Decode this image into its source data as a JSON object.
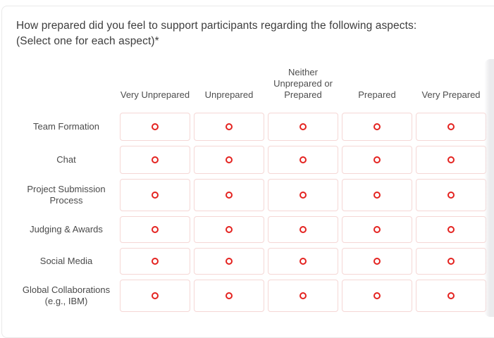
{
  "question": {
    "title_line1": "How prepared did you feel to support participants regarding the following aspects:",
    "title_line2": "(Select one for each aspect)*"
  },
  "matrix": {
    "columns": [
      "Very Unprepared",
      "Unprepared",
      "Neither Unprepared or Prepared",
      "Prepared",
      "Very Prepared"
    ],
    "rows": [
      {
        "label": "Team Formation"
      },
      {
        "label": "Chat"
      },
      {
        "label": "Project Submission Process"
      },
      {
        "label": "Judging & Awards"
      },
      {
        "label": "Social Media"
      },
      {
        "label": "Global Collaborations (e.g., IBM)"
      }
    ]
  },
  "colors": {
    "radio_ring": "#e42320",
    "cell_border": "#f5d7d5",
    "title_text": "#3d3d3d",
    "label_text": "#4a4a4a"
  }
}
